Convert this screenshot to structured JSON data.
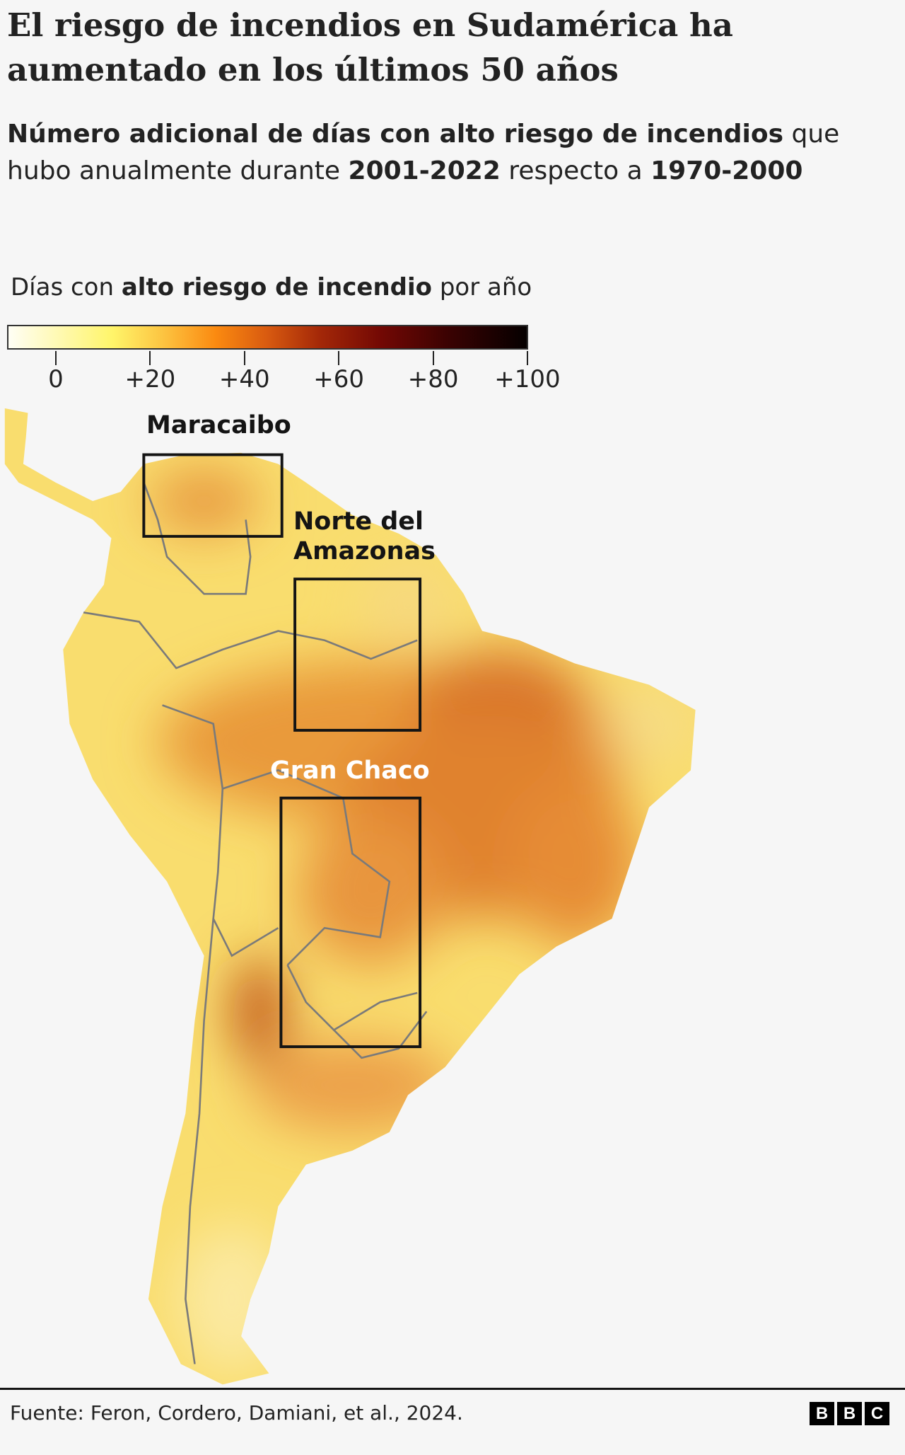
{
  "title": "El riesgo de incendios en Sudamérica ha aumentado en los últimos 50 años",
  "subtitle": {
    "bold_lead": "Número adicional de días con alto riesgo de incendios",
    "text1": " que hubo anualmente durante ",
    "period_recent": "2001-2022",
    "text2": " respecto a ",
    "period_base": "1970-2000"
  },
  "legend": {
    "title_pre": "Días con ",
    "title_bold": "alto riesgo de incendio",
    "title_post": " por año",
    "ticks": [
      "0",
      "+20",
      "+40",
      "+60",
      "+80",
      "+100"
    ],
    "tick_values": [
      0,
      20,
      40,
      60,
      80,
      100
    ],
    "colors": [
      "#fffef5",
      "#fff56a",
      "#fb8a10",
      "#a42808",
      "#050000"
    ]
  },
  "map": {
    "regions": [
      {
        "label_lines": [
          "Maracaibo"
        ]
      },
      {
        "label_lines": [
          "Norte del",
          "Amazonas"
        ]
      },
      {
        "label_lines": [
          "Gran Chaco"
        ]
      }
    ]
  },
  "footer": {
    "source": "Fuente: Feron, Cordero, Damiani, et al., 2024.",
    "logo": [
      "B",
      "B",
      "C"
    ]
  }
}
